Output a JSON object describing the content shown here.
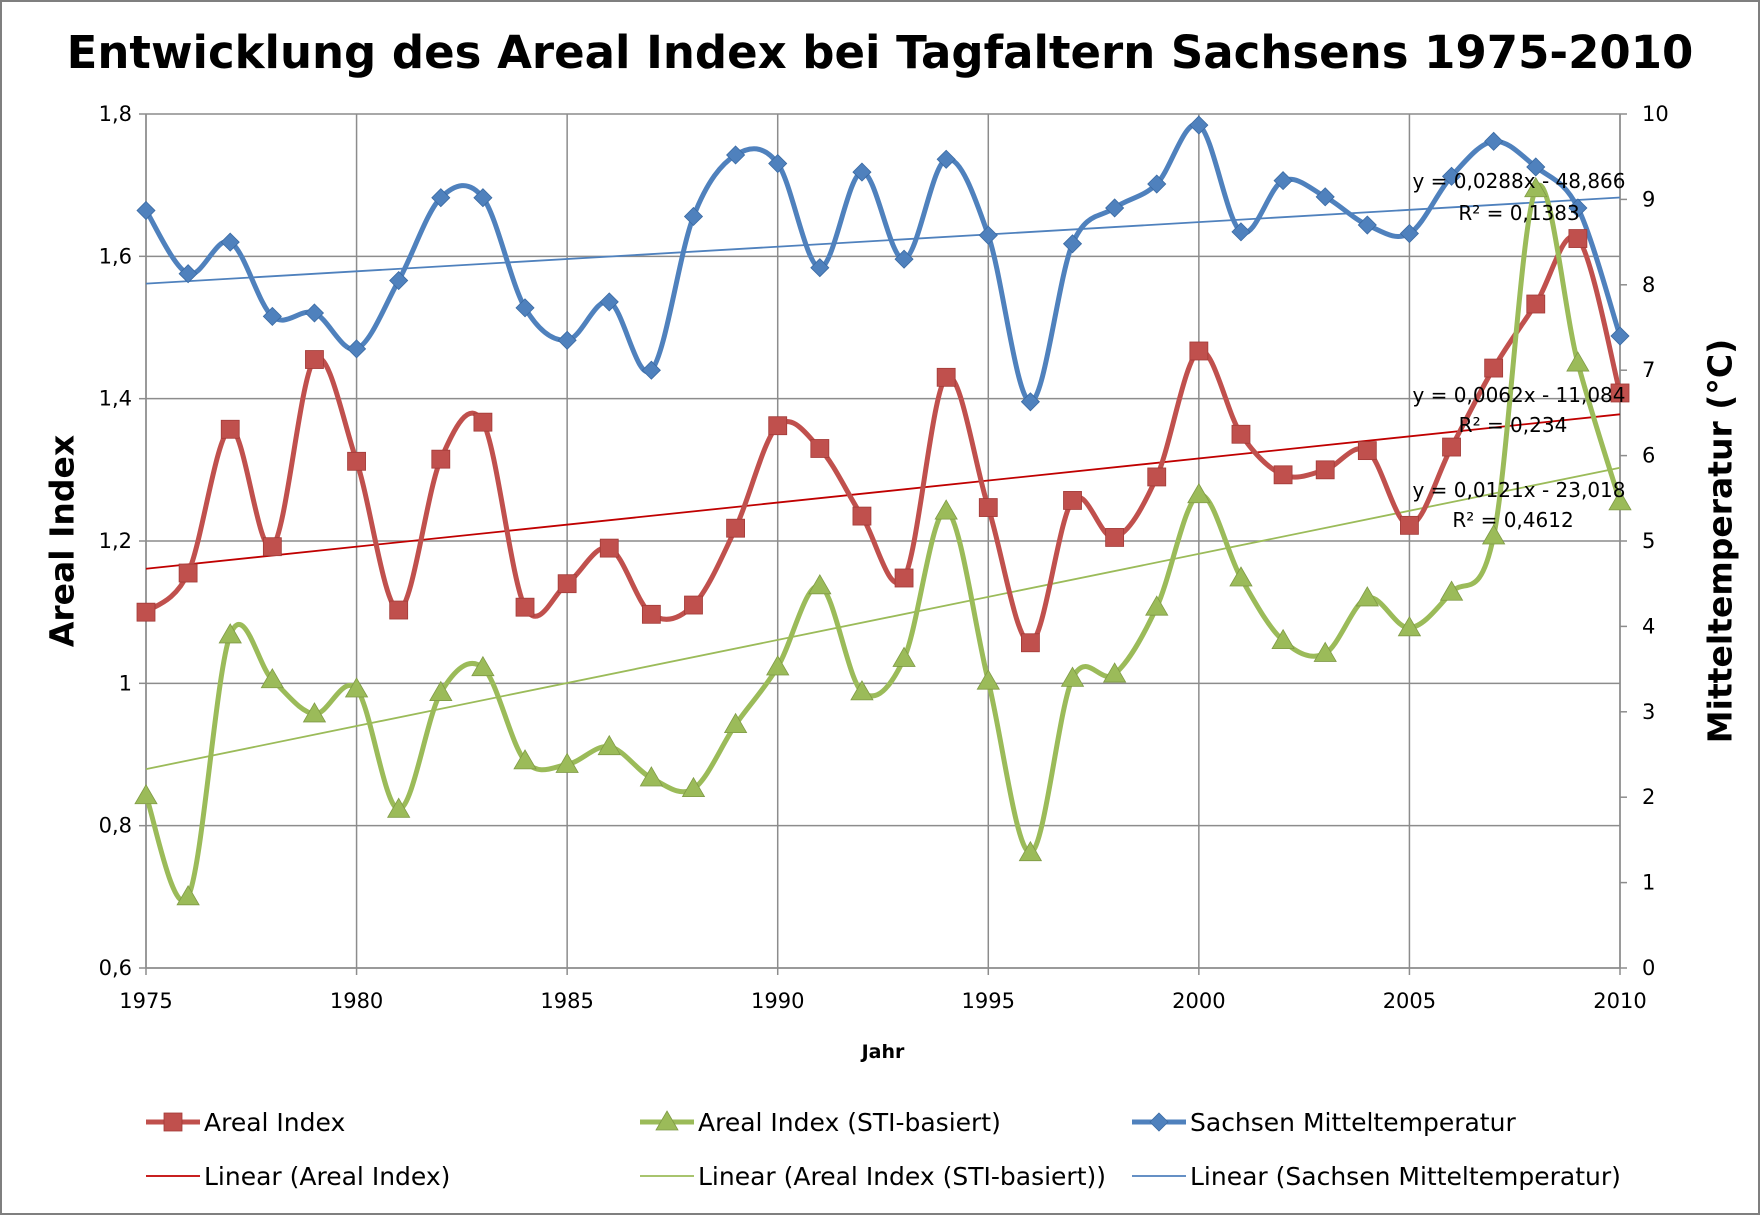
{
  "chart_data": {
    "type": "line",
    "title": "Entwicklung des Areal Index bei Tagfaltern Sachsens 1975-2010",
    "xlabel": "Jahr",
    "ylabel": "Areal Index",
    "y2label": "Mitteltemperatur (°C)",
    "xlim": [
      1975,
      2010
    ],
    "ylim": [
      0.6,
      1.8
    ],
    "y2lim": [
      0,
      10
    ],
    "grid": true,
    "legend_position": "bottom",
    "x_ticks": [
      1975,
      1980,
      1985,
      1990,
      1995,
      2000,
      2005,
      2010
    ],
    "x_tick_labels": [
      "1975",
      "1980",
      "1985",
      "1990",
      "1995",
      "2000",
      "2005",
      "2010"
    ],
    "y_ticks": [
      0.6,
      0.8,
      1,
      1.2,
      1.4,
      1.6,
      1.8
    ],
    "y_tick_labels": [
      "0,6",
      "0,8",
      "1",
      "1,2",
      "1,4",
      "1,6",
      "1,8"
    ],
    "y2_ticks": [
      0,
      1,
      2,
      3,
      4,
      5,
      6,
      7,
      8,
      9,
      10
    ],
    "y2_tick_labels": [
      "0",
      "1",
      "2",
      "3",
      "4",
      "5",
      "6",
      "7",
      "8",
      "9",
      "10"
    ],
    "x": [
      1975,
      1976,
      1977,
      1978,
      1979,
      1980,
      1981,
      1982,
      1983,
      1984,
      1985,
      1986,
      1987,
      1988,
      1989,
      1990,
      1991,
      1992,
      1993,
      1994,
      1995,
      1996,
      1997,
      1998,
      1999,
      2000,
      2001,
      2002,
      2003,
      2004,
      2005,
      2006,
      2007,
      2008,
      2009,
      2010
    ],
    "series": [
      {
        "name": "Areal Index",
        "axis": "left",
        "color": "#c0504d",
        "marker": "square",
        "values": [
          1.1,
          1.155,
          1.357,
          1.192,
          1.455,
          1.312,
          1.103,
          1.315,
          1.367,
          1.107,
          1.14,
          1.19,
          1.097,
          1.11,
          1.218,
          1.362,
          1.33,
          1.235,
          1.148,
          1.43,
          1.247,
          1.057,
          1.257,
          1.205,
          1.29,
          1.467,
          1.35,
          1.293,
          1.3,
          1.327,
          1.222,
          1.332,
          1.443,
          1.533,
          1.625,
          1.408
        ]
      },
      {
        "name": "Areal Index (STI-basiert)",
        "axis": "left",
        "color": "#9bbb59",
        "marker": "triangle",
        "values": [
          0.842,
          0.7,
          1.068,
          1.005,
          0.957,
          0.992,
          0.823,
          0.987,
          1.022,
          0.891,
          0.886,
          0.911,
          0.867,
          0.852,
          0.942,
          1.023,
          1.137,
          0.988,
          1.035,
          1.242,
          1.003,
          0.762,
          1.007,
          1.013,
          1.107,
          1.265,
          1.148,
          1.06,
          1.042,
          1.12,
          1.078,
          1.128,
          1.207,
          1.695,
          1.45,
          1.255
        ]
      },
      {
        "name": "Sachsen Mitteltemperatur",
        "axis": "right",
        "color": "#4f81bd",
        "marker": "diamond",
        "values": [
          8.87,
          8.13,
          8.5,
          7.63,
          7.67,
          7.25,
          8.05,
          9.02,
          9.02,
          7.73,
          7.35,
          7.8,
          7.0,
          8.8,
          9.52,
          9.42,
          8.2,
          9.32,
          8.3,
          9.47,
          8.58,
          6.63,
          8.48,
          8.9,
          9.18,
          9.87,
          8.62,
          9.22,
          9.03,
          8.7,
          8.6,
          9.27,
          9.68,
          9.38,
          8.9,
          7.4
        ]
      }
    ],
    "trendlines": [
      {
        "name": "Linear (Areal Index)",
        "series": "Areal Index",
        "slope": 0.0062,
        "intercept": -11.084,
        "equation": "y = 0,0062x - 11,084",
        "r2": "R² = 0,234",
        "color": "#c00000"
      },
      {
        "name": "Linear (Areal Index (STI-basiert))",
        "series": "Areal Index (STI-basiert)",
        "slope": 0.0121,
        "intercept": -23.018,
        "equation": "y = 0,0121x - 23,018",
        "r2": "R² = 0,4612",
        "color": "#9bbb59"
      },
      {
        "name": "Linear (Sachsen Mitteltemperatur)",
        "series": "Sachsen Mitteltemperatur",
        "slope": 0.0288,
        "intercept": -48.866,
        "equation": "y = 0,0288x - 48,866",
        "r2": "R² = 0,1383",
        "color": "#4f81bd"
      }
    ]
  }
}
